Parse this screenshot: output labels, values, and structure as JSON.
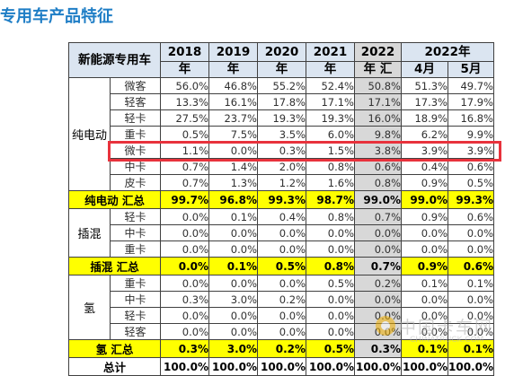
{
  "page_title": "专用车产品特征",
  "table": {
    "header": {
      "category": "新能源专用车",
      "years": [
        {
          "top": "2018",
          "bottom": "年"
        },
        {
          "top": "2019",
          "bottom": "年"
        },
        {
          "top": "2020",
          "bottom": "年"
        },
        {
          "top": "2021",
          "bottom": "年"
        },
        {
          "top": "2022",
          "bottom": "年 汇"
        }
      ],
      "group_2022": "2022年",
      "months": [
        "4月",
        "5月"
      ]
    },
    "groups": [
      {
        "label": "纯电动",
        "rows": [
          {
            "name": "微客",
            "values": [
              "56.0%",
              "46.8%",
              "55.2%",
              "52.4%",
              "50.8%",
              "51.3%",
              "49.7%"
            ]
          },
          {
            "name": "轻客",
            "values": [
              "13.3%",
              "16.1%",
              "17.8%",
              "17.1%",
              "17.1%",
              "17.3%",
              "17.9%"
            ]
          },
          {
            "name": "轻卡",
            "values": [
              "27.5%",
              "23.7%",
              "19.3%",
              "19.3%",
              "16.0%",
              "18.9%",
              "16.8%"
            ]
          },
          {
            "name": "重卡",
            "values": [
              "0.5%",
              "7.5%",
              "3.5%",
              "6.0%",
              "9.8%",
              "6.2%",
              "9.9%"
            ]
          },
          {
            "name": "微卡",
            "values": [
              "1.1%",
              "0.0%",
              "0.3%",
              "1.5%",
              "3.8%",
              "3.9%",
              "3.9%"
            ]
          },
          {
            "name": "中卡",
            "values": [
              "0.7%",
              "1.4%",
              "2.0%",
              "0.8%",
              "0.6%",
              "0.4%",
              "0.6%"
            ]
          },
          {
            "name": "皮卡",
            "values": [
              "0.7%",
              "1.3%",
              "1.2%",
              "1.6%",
              "0.8%",
              "0.9%",
              "0.5%"
            ]
          }
        ],
        "summary": {
          "label": "纯电动 汇总",
          "values": [
            "99.7%",
            "96.8%",
            "99.3%",
            "98.7%",
            "99.0%",
            "99.0%",
            "99.3%"
          ]
        }
      },
      {
        "label": "插混",
        "rows": [
          {
            "name": "轻卡",
            "values": [
              "0.0%",
              "0.1%",
              "0.4%",
              "0.8%",
              "0.7%",
              "0.9%",
              "0.6%"
            ]
          },
          {
            "name": "中卡",
            "values": [
              "0.0%",
              "0.0%",
              "0.0%",
              "0.0%",
              "0.0%",
              "0.0%",
              "0.0%"
            ]
          },
          {
            "name": "重卡",
            "values": [
              "0.0%",
              "0.0%",
              "0.0%",
              "0.0%",
              "0.0%",
              "0.0%",
              "0.0%"
            ]
          }
        ],
        "summary": {
          "label": "插混 汇总",
          "values": [
            "0.0%",
            "0.1%",
            "0.5%",
            "0.8%",
            "0.7%",
            "0.9%",
            "0.6%"
          ]
        }
      },
      {
        "label": "氢",
        "rows": [
          {
            "name": "重卡",
            "values": [
              "0.0%",
              "0.0%",
              "0.0%",
              "0.5%",
              "0.2%",
              "0.1%",
              "0.1%"
            ]
          },
          {
            "name": "中卡",
            "values": [
              "0.3%",
              "3.0%",
              "0.2%",
              "0.0%",
              "0.0%",
              "0.0%",
              "0.0%"
            ]
          },
          {
            "name": "轻卡",
            "values": [
              "0.0%",
              "0.0%",
              "0.0%",
              "0.0%",
              "0.0%",
              "0.0%",
              "0.0%"
            ]
          },
          {
            "name": "轻客",
            "values": [
              "0.0%",
              "0.0%",
              "0.0%",
              "0.0%",
              "0.0%",
              "0.0%",
              "0.0%"
            ]
          }
        ],
        "summary": {
          "label": "氢 汇总",
          "values": [
            "0.3%",
            "3.0%",
            "0.2%",
            "0.5%",
            "0.3%",
            "0.1%",
            "0.1%"
          ]
        }
      }
    ],
    "total": {
      "label": "总计",
      "values": [
        "100.0%",
        "100.0%",
        "100.0%",
        "100.0%",
        "100.0%",
        "100.0%",
        "100.0%"
      ]
    }
  },
  "highlight": {
    "row": "微卡",
    "color": "#e8323c"
  },
  "watermark": {
    "text_cn": "中国卡车网",
    "text_en": "CHINATRUCK.COM"
  },
  "colors": {
    "title": "#1f7ec6",
    "header_bg": "#dbe5f1",
    "summary_bg": "#ffff00",
    "column_2022_bg": "#d8d8d8"
  }
}
